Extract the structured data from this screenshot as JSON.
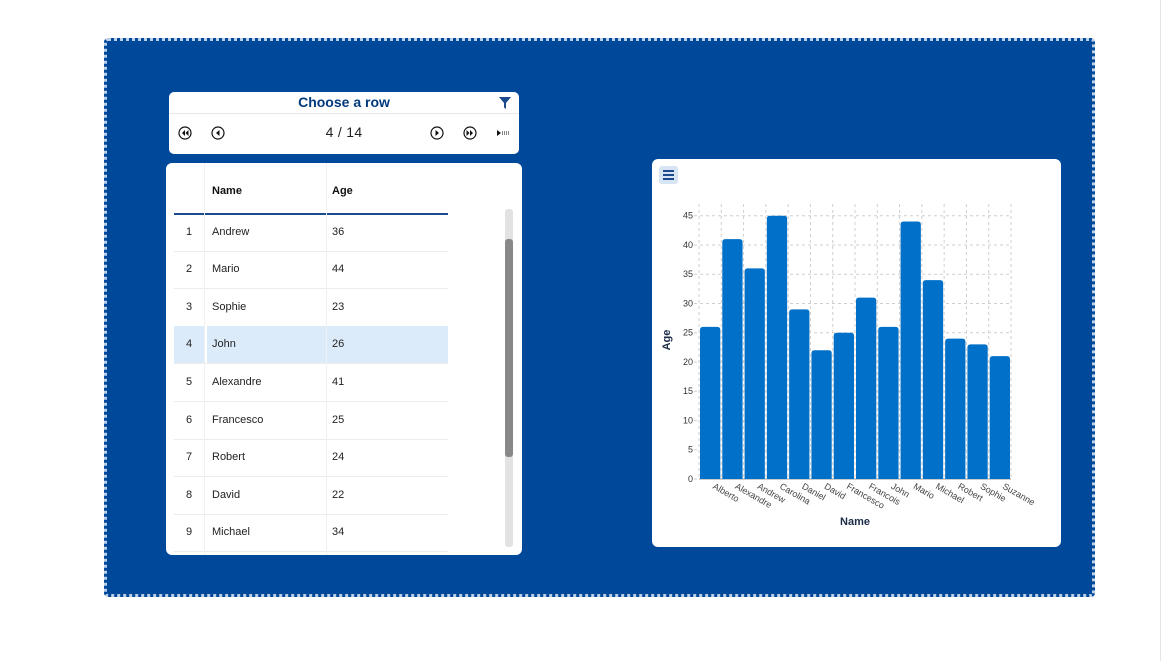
{
  "chooser": {
    "title": "Choose a row",
    "current": "4",
    "total_label": "/ 14",
    "icons": [
      "filter-icon",
      "first-page-icon",
      "prev-page-icon",
      "next-page-icon",
      "last-page-icon",
      "play-icon"
    ]
  },
  "table": {
    "headers": {
      "name": "Name",
      "age": "Age"
    },
    "rows": [
      {
        "idx": "1",
        "name": "Andrew",
        "age": "36"
      },
      {
        "idx": "2",
        "name": "Mario",
        "age": "44"
      },
      {
        "idx": "3",
        "name": "Sophie",
        "age": "23"
      },
      {
        "idx": "4",
        "name": "John",
        "age": "26"
      },
      {
        "idx": "5",
        "name": "Alexandre",
        "age": "41"
      },
      {
        "idx": "6",
        "name": "Francesco",
        "age": "25"
      },
      {
        "idx": "7",
        "name": "Robert",
        "age": "24"
      },
      {
        "idx": "8",
        "name": "David",
        "age": "22"
      },
      {
        "idx": "9",
        "name": "Michael",
        "age": "34"
      }
    ],
    "selected_index": 3
  },
  "colors": {
    "background": "#00489a",
    "bar": "#0070c8",
    "selected_row": "#dcebfa",
    "title": "#003a7d"
  },
  "chart_data": {
    "type": "bar",
    "categories": [
      "Alberto",
      "Alexandre",
      "Andrew",
      "Carolina",
      "Daniel",
      "David",
      "Francesco",
      "Francois",
      "John",
      "Mario",
      "Michael",
      "Robert",
      "Sophie",
      "Suzanne"
    ],
    "values": [
      26,
      41,
      36,
      45,
      29,
      22,
      25,
      31,
      26,
      44,
      34,
      24,
      23,
      21
    ],
    "xlabel": "Name",
    "ylabel": "Age",
    "ylim": [
      0,
      47
    ],
    "yticks": [
      0,
      5,
      10,
      15,
      20,
      25,
      30,
      35,
      40,
      45
    ],
    "grid": true,
    "menu_icon": "hamburger-menu-icon"
  }
}
